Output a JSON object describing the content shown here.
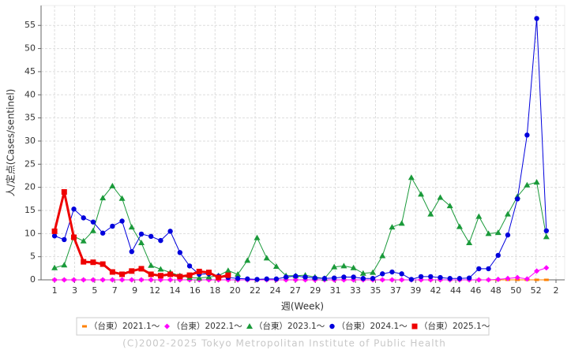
{
  "chart_data": {
    "type": "line",
    "x_label": "週(Week)",
    "y_label": "人/定点(Cases/sentinel)",
    "footer": "(C)2002-2025 Tokyo Metropolitan Institute of Public Health",
    "xlim": [
      -0.4,
      53.9
    ],
    "ylim": [
      0,
      59.3
    ],
    "xticks": [
      1,
      {
        "value": 3.08,
        "label": "3"
      },
      {
        "value": 5.16,
        "label": "5"
      },
      {
        "value": 7.24,
        "label": "7"
      },
      {
        "value": 9.32,
        "label": "9"
      },
      {
        "value": 11.4,
        "label": "12"
      },
      {
        "value": 13.48,
        "label": "14"
      },
      {
        "value": 15.56,
        "label": "16"
      },
      {
        "value": 17.64,
        "label": "18"
      },
      {
        "value": 19.72,
        "label": "20"
      },
      {
        "value": 21.8,
        "label": "22"
      },
      {
        "value": 23.88,
        "label": "24"
      },
      {
        "value": 25.96,
        "label": "27"
      },
      {
        "value": 28.04,
        "label": "29"
      },
      {
        "value": 30.12,
        "label": "31"
      },
      {
        "value": 32.2,
        "label": "33"
      },
      {
        "value": 34.28,
        "label": "35"
      },
      {
        "value": 36.36,
        "label": "37"
      },
      {
        "value": 38.44,
        "label": "39"
      },
      {
        "value": 40.52,
        "label": "42"
      },
      {
        "value": 42.6,
        "label": "44"
      },
      {
        "value": 44.68,
        "label": "46"
      },
      {
        "value": 46.76,
        "label": "48"
      },
      {
        "value": 48.84,
        "label": "50"
      },
      {
        "value": 50.92,
        "label": "52"
      },
      {
        "value": 53.0,
        "label": "2"
      }
    ],
    "yticks": [
      0,
      5,
      10,
      15,
      20,
      25,
      30,
      35,
      40,
      45,
      50,
      55
    ],
    "grid": true,
    "x": [
      1,
      2,
      3,
      4,
      5,
      6,
      7,
      8,
      9,
      10,
      11,
      12,
      13,
      14,
      15,
      16,
      17,
      18,
      19,
      20,
      21,
      22,
      23,
      24,
      25,
      26,
      27,
      28,
      29,
      30,
      31,
      32,
      33,
      34,
      35,
      36,
      37,
      38,
      39,
      40,
      41,
      42,
      43,
      44,
      45,
      46,
      47,
      48,
      49,
      50,
      51,
      52
    ],
    "series": [
      {
        "name": "（台東）2021.1～",
        "color": "#ff8000",
        "marker": "dash",
        "line_width": 1,
        "values": [
          0,
          0,
          0,
          0,
          0,
          0,
          0,
          0,
          0,
          0,
          0,
          0,
          0,
          0,
          0,
          0,
          0,
          0,
          0,
          0,
          0,
          0,
          0,
          0,
          0,
          0,
          0,
          0,
          0,
          0,
          0,
          0,
          0,
          0,
          0,
          0,
          0,
          0,
          0,
          0,
          0,
          0,
          0,
          0,
          0,
          0,
          0,
          0,
          0,
          0,
          0,
          0
        ]
      },
      {
        "name": "（台東）2022.1～",
        "color": "#ff00ff",
        "marker": "diamond",
        "line_width": 1,
        "values": [
          0,
          0,
          0,
          0,
          0,
          0,
          0,
          0,
          0,
          0,
          0,
          0,
          0,
          0,
          0,
          0,
          0,
          0,
          0,
          0,
          0,
          0,
          0,
          0,
          0,
          0,
          0,
          0,
          0,
          0,
          0,
          0,
          0,
          0,
          0,
          0,
          0,
          0,
          0,
          0,
          0,
          0,
          0,
          0,
          0,
          0,
          0.1,
          0.3,
          0.5,
          0.2,
          1.9,
          2.6
        ]
      },
      {
        "name": "（台東）2023.1～",
        "color": "#1a9a3a",
        "marker": "triangle",
        "line_width": 1,
        "values": [
          2.6,
          3.2,
          9.4,
          8.4,
          10.6,
          17.7,
          20.3,
          17.6,
          11.4,
          8.0,
          3.1,
          2.3,
          1.6,
          0.9,
          0.5,
          0.4,
          0.6,
          0.9,
          2.0,
          1.2,
          4.2,
          9.1,
          4.7,
          2.9,
          0.9,
          0.9,
          1.0,
          0.6,
          0.3,
          2.8,
          3.0,
          2.6,
          1.4,
          1.6,
          5.2,
          11.4,
          12.2,
          22.1,
          18.5,
          14.2,
          17.8,
          16.0,
          11.5,
          8.0,
          13.7,
          10.0,
          10.2,
          14.2,
          18.0,
          20.5,
          21.1,
          9.3
        ]
      },
      {
        "name": "（台東）2024.1～",
        "color": "#0000dd",
        "marker": "circle",
        "line_width": 1,
        "values": [
          9.5,
          8.7,
          15.3,
          13.4,
          12.5,
          10.1,
          11.6,
          12.7,
          6.1,
          9.9,
          9.4,
          8.5,
          10.5,
          5.9,
          3.0,
          1.2,
          1.3,
          0.8,
          0.5,
          0.3,
          0.2,
          0.1,
          0.2,
          0.2,
          0.6,
          0.8,
          0.6,
          0.4,
          0.3,
          0.4,
          0.6,
          0.6,
          0.3,
          0.3,
          1.3,
          1.7,
          1.3,
          0.1,
          0.7,
          0.7,
          0.5,
          0.3,
          0.3,
          0.4,
          2.4,
          2.4,
          5.3,
          9.7,
          17.5,
          31.3,
          56.5,
          10.6
        ]
      },
      {
        "name": "（台東）2025.1～",
        "color": "#ee0000",
        "marker": "square",
        "line_width": 3,
        "values": [
          10.5,
          19.0,
          9.2,
          3.9,
          3.8,
          3.4,
          1.7,
          1.2,
          1.9,
          2.4,
          1.2,
          0.9,
          1.2,
          0.7,
          1.0,
          1.8,
          1.6,
          0.5,
          1.0,
          null,
          null,
          null,
          null,
          null,
          null,
          null,
          null,
          null,
          null,
          null,
          null,
          null,
          null,
          null,
          null,
          null,
          null,
          null,
          null,
          null,
          null,
          null,
          null,
          null,
          null,
          null,
          null,
          null,
          null,
          null,
          null,
          null
        ]
      }
    ]
  }
}
